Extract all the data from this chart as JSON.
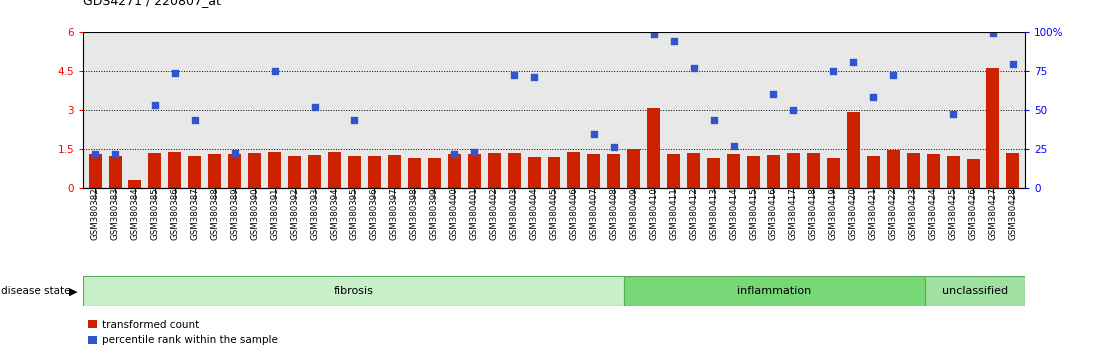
{
  "title": "GDS4271 / 220807_at",
  "samples": [
    "GSM380382",
    "GSM380383",
    "GSM380384",
    "GSM380385",
    "GSM380386",
    "GSM380387",
    "GSM380388",
    "GSM380389",
    "GSM380390",
    "GSM380391",
    "GSM380392",
    "GSM380393",
    "GSM380394",
    "GSM380395",
    "GSM380396",
    "GSM380397",
    "GSM380398",
    "GSM380399",
    "GSM380400",
    "GSM380401",
    "GSM380402",
    "GSM380403",
    "GSM380404",
    "GSM380405",
    "GSM380406",
    "GSM380407",
    "GSM380408",
    "GSM380409",
    "GSM380410",
    "GSM380411",
    "GSM380412",
    "GSM380413",
    "GSM380414",
    "GSM380415",
    "GSM380416",
    "GSM380417",
    "GSM380418",
    "GSM380419",
    "GSM380420",
    "GSM380421",
    "GSM380422",
    "GSM380423",
    "GSM380424",
    "GSM380425",
    "GSM380426",
    "GSM380427",
    "GSM380428"
  ],
  "bar_values": [
    1.28,
    1.22,
    0.28,
    1.32,
    1.38,
    1.22,
    1.28,
    1.3,
    1.32,
    1.38,
    1.22,
    1.26,
    1.36,
    1.22,
    1.22,
    1.25,
    1.15,
    1.15,
    1.28,
    1.28,
    1.32,
    1.35,
    1.18,
    1.18,
    1.38,
    1.28,
    1.28,
    1.5,
    3.05,
    1.28,
    1.35,
    1.15,
    1.28,
    1.2,
    1.25,
    1.32,
    1.32,
    1.15,
    2.92,
    1.22,
    1.45,
    1.32,
    1.28,
    1.22,
    1.12,
    4.6,
    1.35
  ],
  "dot_values": [
    1.28,
    1.3,
    null,
    3.2,
    4.4,
    2.6,
    null,
    1.35,
    null,
    4.5,
    null,
    3.1,
    null,
    2.6,
    null,
    null,
    null,
    null,
    1.3,
    1.38,
    null,
    4.35,
    4.25,
    null,
    null,
    2.05,
    1.55,
    null,
    5.9,
    5.65,
    4.6,
    2.6,
    1.6,
    null,
    3.6,
    3.0,
    null,
    4.5,
    4.85,
    3.5,
    4.35,
    null,
    null,
    2.85,
    null,
    5.95,
    4.75
  ],
  "disease_groups": [
    {
      "label": "fibrosis",
      "start": 0,
      "end": 27,
      "color": "#c8f0c8",
      "edge": "#5aaa5a"
    },
    {
      "label": "inflammation",
      "start": 27,
      "end": 42,
      "color": "#78d878",
      "edge": "#5aaa5a"
    },
    {
      "label": "unclassified",
      "start": 42,
      "end": 47,
      "color": "#a0e0a0",
      "edge": "#5aaa5a"
    }
  ],
  "ylim_left": [
    0,
    6
  ],
  "yticks_left": [
    0,
    1.5,
    3.0,
    4.5,
    6.0
  ],
  "yticks_left_labels": [
    "0",
    "1.5",
    "3",
    "4.5",
    "6"
  ],
  "yticks_right": [
    0,
    25,
    50,
    75,
    100
  ],
  "yticks_right_labels": [
    "0",
    "25",
    "50",
    "75",
    "100%"
  ],
  "hlines": [
    1.5,
    3.0,
    4.5
  ],
  "bar_color": "#cc2200",
  "dot_color": "#3355cc",
  "plot_bg": "#e8e8e8",
  "title_fontsize": 9,
  "legend_labels": [
    "transformed count",
    "percentile rank within the sample"
  ]
}
